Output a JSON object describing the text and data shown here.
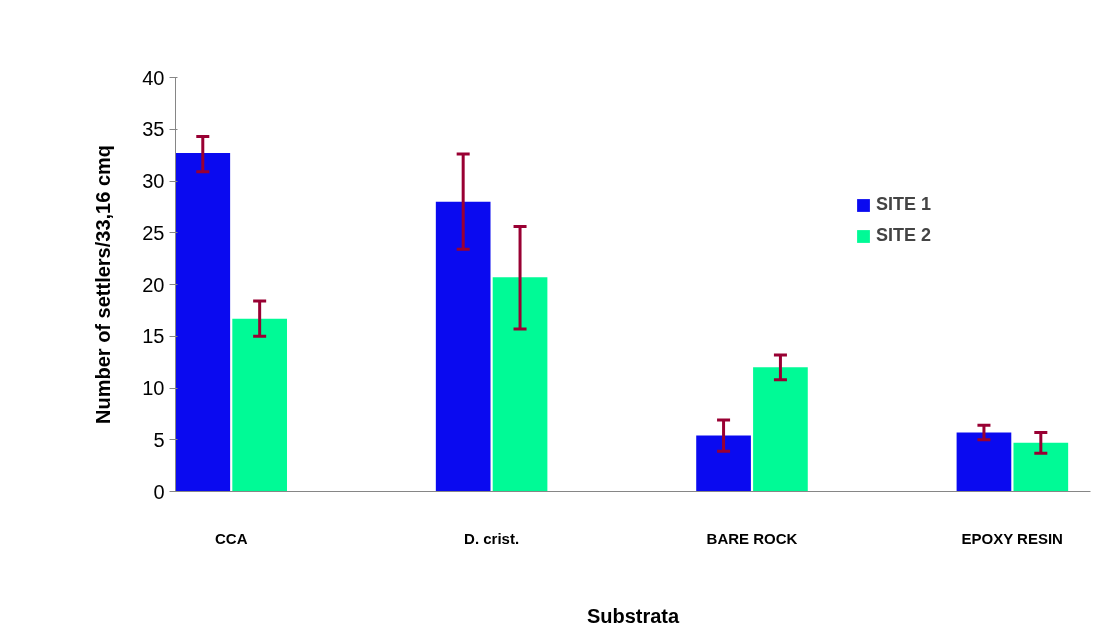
{
  "chart_data": {
    "type": "bar",
    "xlabel": "Substrata",
    "ylabel": "Number of settlers/33,16 cmq",
    "categories": [
      "CCA",
      "D. crist.",
      "BARE ROCK",
      "EPOXY RESIN"
    ],
    "series": [
      {
        "name": "SITE 1",
        "color": "#0a0af0",
        "values": [
          32.7,
          28.0,
          5.4,
          5.7
        ],
        "errors": [
          [
            30.9,
            34.3
          ],
          [
            23.4,
            32.6
          ],
          [
            3.9,
            6.9
          ],
          [
            5.0,
            6.4
          ]
        ]
      },
      {
        "name": "SITE 2",
        "color": "#00fa96",
        "values": [
          16.7,
          20.7,
          12.0,
          4.7
        ],
        "errors": [
          [
            15.0,
            18.4
          ],
          [
            15.7,
            25.6
          ],
          [
            10.8,
            13.2
          ],
          [
            3.7,
            5.7
          ]
        ]
      }
    ],
    "ylim": [
      0,
      40
    ],
    "yticks": [
      0,
      5,
      10,
      15,
      20,
      25,
      30,
      35,
      40
    ],
    "grid": false,
    "legend": "top right"
  }
}
